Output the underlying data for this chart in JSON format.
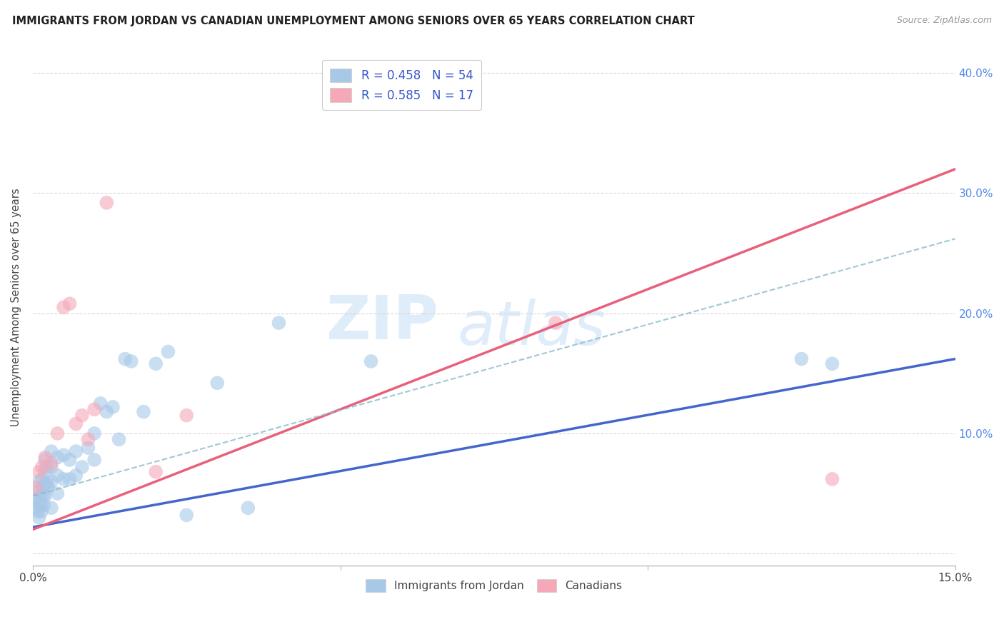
{
  "title": "IMMIGRANTS FROM JORDAN VS CANADIAN UNEMPLOYMENT AMONG SENIORS OVER 65 YEARS CORRELATION CHART",
  "source": "Source: ZipAtlas.com",
  "ylabel": "Unemployment Among Seniors over 65 years",
  "xlim": [
    0.0,
    0.15
  ],
  "ylim": [
    -0.01,
    0.42
  ],
  "yticks_right": [
    0.0,
    0.1,
    0.2,
    0.3,
    0.4
  ],
  "ytick_labels_right": [
    "",
    "10.0%",
    "20.0%",
    "30.0%",
    "40.0%"
  ],
  "legend_blue_label": "R = 0.458   N = 54",
  "legend_pink_label": "R = 0.585   N = 17",
  "blue_color": "#a8c8e8",
  "pink_color": "#f4a8b8",
  "blue_line_color": "#4466cc",
  "pink_line_color": "#e8607a",
  "blue_scatter_x": [
    0.0005,
    0.0005,
    0.0008,
    0.001,
    0.001,
    0.001,
    0.001,
    0.0012,
    0.0013,
    0.0014,
    0.0015,
    0.0016,
    0.0017,
    0.0018,
    0.002,
    0.002,
    0.002,
    0.002,
    0.0022,
    0.0023,
    0.0025,
    0.003,
    0.003,
    0.003,
    0.003,
    0.004,
    0.004,
    0.004,
    0.005,
    0.005,
    0.006,
    0.006,
    0.007,
    0.007,
    0.008,
    0.009,
    0.01,
    0.01,
    0.011,
    0.012,
    0.013,
    0.014,
    0.015,
    0.016,
    0.018,
    0.02,
    0.022,
    0.025,
    0.03,
    0.035,
    0.04,
    0.055,
    0.125,
    0.13
  ],
  "blue_scatter_y": [
    0.045,
    0.038,
    0.035,
    0.06,
    0.052,
    0.042,
    0.03,
    0.048,
    0.04,
    0.035,
    0.062,
    0.055,
    0.048,
    0.04,
    0.078,
    0.068,
    0.058,
    0.048,
    0.072,
    0.058,
    0.055,
    0.085,
    0.072,
    0.06,
    0.038,
    0.08,
    0.065,
    0.05,
    0.082,
    0.062,
    0.078,
    0.062,
    0.085,
    0.065,
    0.072,
    0.088,
    0.1,
    0.078,
    0.125,
    0.118,
    0.122,
    0.095,
    0.162,
    0.16,
    0.118,
    0.158,
    0.168,
    0.032,
    0.142,
    0.038,
    0.192,
    0.16,
    0.162,
    0.158
  ],
  "pink_scatter_x": [
    0.0005,
    0.001,
    0.0015,
    0.002,
    0.003,
    0.004,
    0.005,
    0.006,
    0.007,
    0.008,
    0.009,
    0.01,
    0.012,
    0.02,
    0.025,
    0.085,
    0.13
  ],
  "pink_scatter_y": [
    0.055,
    0.068,
    0.072,
    0.08,
    0.075,
    0.1,
    0.205,
    0.208,
    0.108,
    0.115,
    0.095,
    0.12,
    0.292,
    0.068,
    0.115,
    0.192,
    0.062
  ],
  "blue_line_x": [
    0.0,
    0.15
  ],
  "blue_line_y": [
    0.022,
    0.162
  ],
  "pink_line_x": [
    0.0,
    0.15
  ],
  "pink_line_y": [
    0.02,
    0.32
  ],
  "dashed_line_x": [
    0.0,
    0.15
  ],
  "dashed_line_y": [
    0.048,
    0.262
  ],
  "background_color": "#ffffff",
  "grid_color": "#d8d8d8"
}
